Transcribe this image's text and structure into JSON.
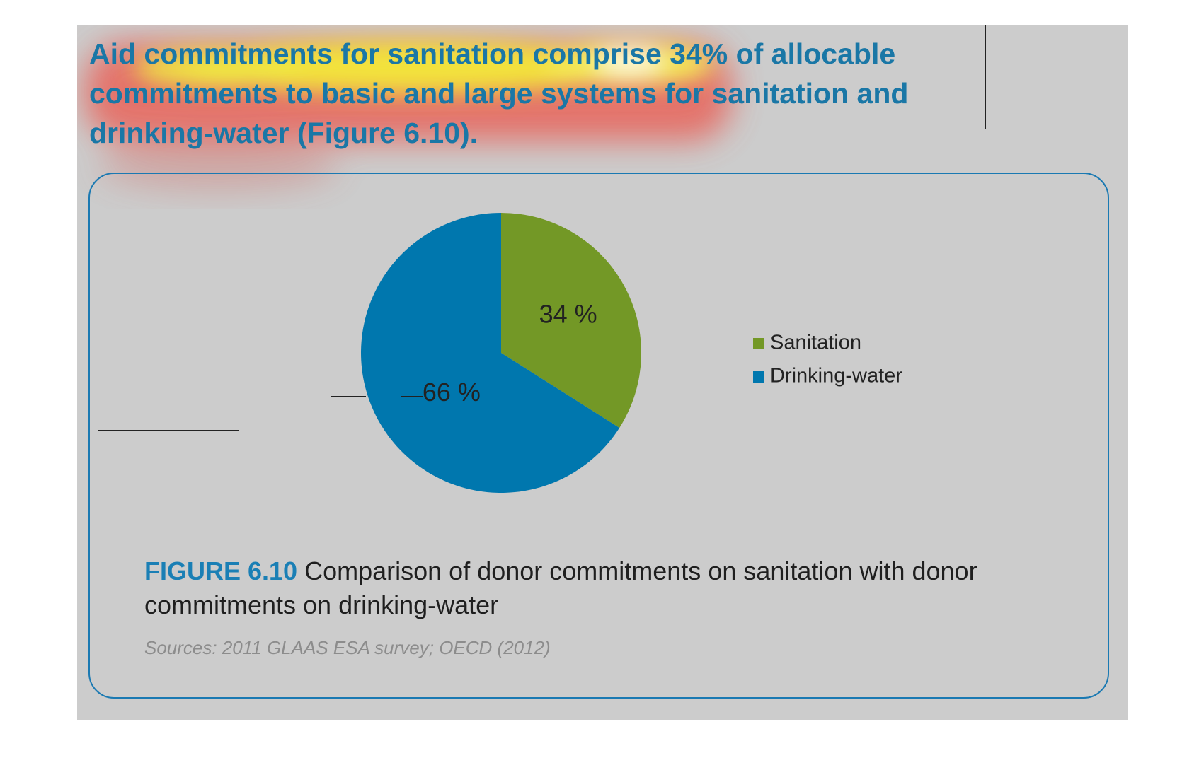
{
  "headline": "Aid commitments for sanitation comprise 34% of allocable commitments to basic and large systems for sanitation and drinking-water (Figure 6.10).",
  "colors": {
    "headline": "#1a77a6",
    "frame": "#1a79b2",
    "sanitation": "#739826",
    "drinking_water": "#0077ae",
    "background": "#cccccc",
    "source": "#8c8c8c"
  },
  "chart_data": {
    "type": "pie",
    "labels": [
      "Sanitation",
      "Drinking-water"
    ],
    "values": [
      34,
      66
    ],
    "data_labels": [
      "34 %",
      "66 %"
    ],
    "colors": [
      "#739826",
      "#0077ae"
    ],
    "legend_position": "right",
    "start_angle": "12 o'clock",
    "direction": "clockwise"
  },
  "legend": {
    "items": [
      {
        "label": "Sanitation",
        "color": "#739826"
      },
      {
        "label": "Drinking-water",
        "color": "#0077ae"
      }
    ]
  },
  "caption": {
    "figure_label": "FIGURE 6.10",
    "text": "Comparison of donor commitments on sanitation with donor commitments on drinking-water"
  },
  "source": "Sources: 2011 GLAAS ESA survey; OECD (2012)"
}
